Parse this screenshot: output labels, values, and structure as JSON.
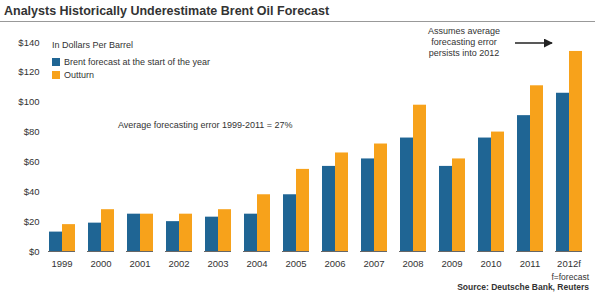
{
  "chart_data": {
    "type": "bar",
    "title": "Analysts Historically Underestimate Brent Oil Forecast",
    "y_label": "In Dollars Per Barrel",
    "categories": [
      "1999",
      "2000",
      "2001",
      "2002",
      "2003",
      "2004",
      "2005",
      "2006",
      "2007",
      "2008",
      "2009",
      "2010",
      "2011",
      "2012f"
    ],
    "series": [
      {
        "name": "Brent forecast at the start of the year",
        "color": "#1f6594",
        "values": [
          13,
          19,
          25,
          20,
          23,
          25,
          38,
          57,
          62,
          76,
          57,
          76,
          91,
          106
        ]
      },
      {
        "name": "Outturn",
        "color": "#f7a21b",
        "values": [
          18,
          28,
          25,
          25,
          28,
          38,
          55,
          66,
          72,
          98,
          62,
          80,
          111,
          134
        ]
      }
    ],
    "ylim": [
      0,
      140
    ],
    "yticks": [
      {
        "value": 0,
        "label": "$0"
      },
      {
        "value": 20,
        "label": "$20"
      },
      {
        "value": 40,
        "label": "$40"
      },
      {
        "value": 60,
        "label": "$60"
      },
      {
        "value": 80,
        "label": "$80"
      },
      {
        "value": 100,
        "label": "$100"
      },
      {
        "value": 120,
        "label": "$120"
      },
      {
        "value": 140,
        "label": "$140"
      }
    ],
    "grid": false,
    "legend": "top-left",
    "annotations": [
      "Average forecasting error 1999-2011 = 27%",
      "Assumes average forecasting error persists into 2012"
    ],
    "footnote": "f=forecast",
    "source": "Source: Deutsche Bank, Reuters"
  }
}
